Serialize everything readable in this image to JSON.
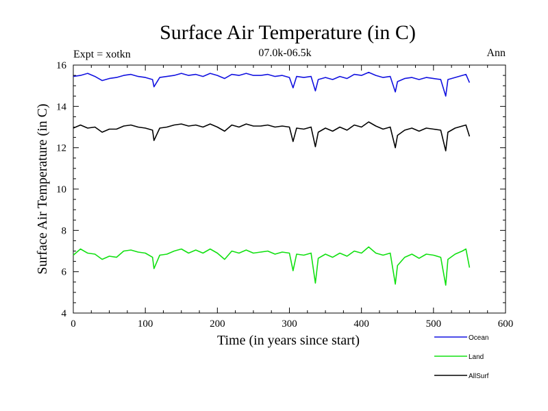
{
  "chart_data": {
    "type": "line",
    "title": "Surface Air Temperature (in C)",
    "subtitle_left": "Expt = xotkn",
    "subtitle_center": "07.0k-06.5k",
    "subtitle_right": "Ann",
    "xlabel": "Time (in years since start)",
    "ylabel": "Surface Air Temperature (in C)",
    "xlim": [
      0,
      600
    ],
    "ylim": [
      4,
      16
    ],
    "xticks": [
      0,
      100,
      200,
      300,
      400,
      500,
      600
    ],
    "yticks": [
      4,
      6,
      8,
      10,
      12,
      14,
      16
    ],
    "grid": false,
    "legend_position": "bottom-right",
    "x": [
      0,
      10,
      20,
      30,
      40,
      50,
      60,
      70,
      80,
      90,
      100,
      110,
      112,
      120,
      130,
      140,
      150,
      160,
      170,
      180,
      190,
      200,
      210,
      220,
      230,
      240,
      250,
      260,
      270,
      280,
      290,
      300,
      305,
      310,
      320,
      330,
      336,
      340,
      350,
      360,
      370,
      380,
      390,
      400,
      410,
      420,
      430,
      440,
      447,
      450,
      460,
      470,
      480,
      490,
      500,
      510,
      517,
      520,
      530,
      540,
      545,
      550
    ],
    "series": [
      {
        "name": "Ocean",
        "color": "#1010e0",
        "values": [
          15.45,
          15.5,
          15.6,
          15.45,
          15.25,
          15.35,
          15.4,
          15.5,
          15.55,
          15.45,
          15.4,
          15.3,
          14.95,
          15.4,
          15.45,
          15.5,
          15.6,
          15.5,
          15.55,
          15.45,
          15.6,
          15.5,
          15.35,
          15.55,
          15.5,
          15.6,
          15.5,
          15.5,
          15.55,
          15.45,
          15.5,
          15.4,
          14.9,
          15.45,
          15.4,
          15.45,
          14.75,
          15.3,
          15.4,
          15.3,
          15.45,
          15.35,
          15.55,
          15.5,
          15.65,
          15.5,
          15.4,
          15.45,
          14.7,
          15.2,
          15.35,
          15.4,
          15.3,
          15.4,
          15.35,
          15.3,
          14.5,
          15.3,
          15.4,
          15.5,
          15.55,
          15.15
        ]
      },
      {
        "name": "Land",
        "color": "#10e010",
        "values": [
          6.8,
          7.1,
          6.9,
          6.85,
          6.6,
          6.75,
          6.7,
          7.0,
          7.05,
          6.95,
          6.9,
          6.7,
          6.15,
          6.8,
          6.85,
          7.0,
          7.1,
          6.9,
          7.05,
          6.9,
          7.1,
          6.9,
          6.6,
          7.0,
          6.9,
          7.05,
          6.9,
          6.95,
          7.0,
          6.85,
          6.95,
          6.9,
          6.05,
          6.85,
          6.8,
          6.9,
          5.45,
          6.65,
          6.85,
          6.7,
          6.9,
          6.75,
          7.0,
          6.9,
          7.2,
          6.9,
          6.8,
          6.9,
          5.4,
          6.3,
          6.7,
          6.85,
          6.65,
          6.85,
          6.8,
          6.7,
          5.35,
          6.6,
          6.85,
          7.0,
          7.1,
          6.2
        ]
      },
      {
        "name": "AllSurf",
        "color": "#000000",
        "values": [
          12.95,
          13.1,
          12.95,
          13.0,
          12.75,
          12.9,
          12.9,
          13.05,
          13.1,
          13.0,
          12.95,
          12.85,
          12.35,
          12.95,
          13.0,
          13.1,
          13.15,
          13.05,
          13.1,
          13.0,
          13.15,
          13.0,
          12.8,
          13.1,
          13.0,
          13.15,
          13.05,
          13.05,
          13.1,
          13.0,
          13.05,
          13.0,
          12.3,
          12.95,
          12.9,
          13.0,
          12.05,
          12.75,
          12.95,
          12.8,
          13.0,
          12.85,
          13.1,
          13.0,
          13.25,
          13.05,
          12.9,
          13.0,
          12.0,
          12.6,
          12.85,
          12.95,
          12.8,
          12.95,
          12.9,
          12.85,
          11.85,
          12.75,
          12.95,
          13.05,
          13.1,
          12.55
        ]
      }
    ]
  }
}
